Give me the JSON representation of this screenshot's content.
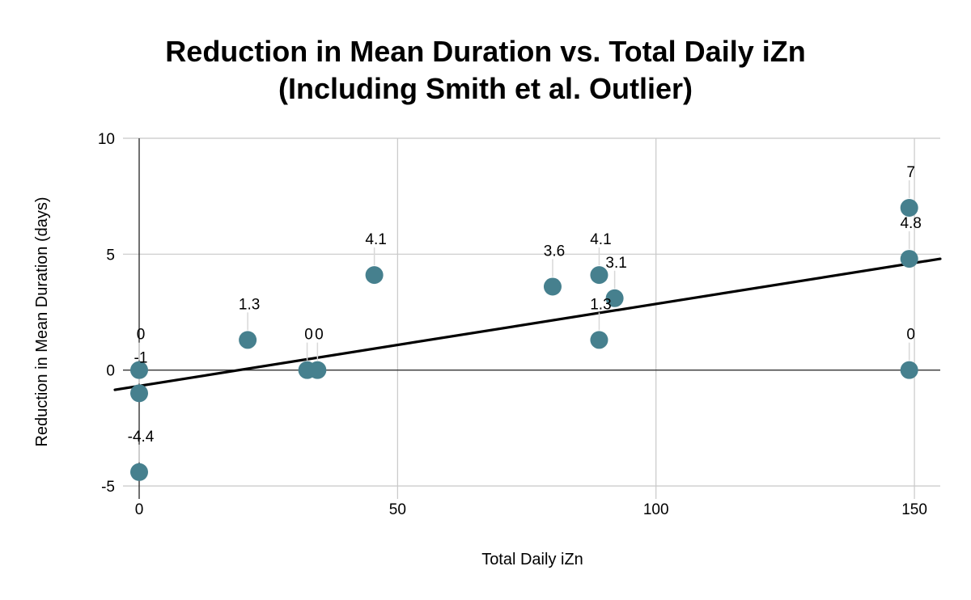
{
  "chart_data": {
    "type": "scatter",
    "title_lines": [
      "Reduction in Mean Duration vs. Total Daily iZn",
      "(Including Smith et al. Outlier)"
    ],
    "xlabel": "Total Daily iZn",
    "ylabel": "Reduction in Mean Duration (days)",
    "xlim": [
      0,
      155
    ],
    "ylim": [
      -5,
      10
    ],
    "x_ticks": [
      0,
      50,
      100,
      150
    ],
    "y_ticks": [
      -5,
      0,
      5,
      10
    ],
    "grid": true,
    "legend": "none",
    "point_color": "#46808e",
    "trendline": {
      "type": "linear",
      "color": "#000000",
      "y_at_x_min": -0.65,
      "y_at_x_max": 4.8
    },
    "points": [
      {
        "x": 0,
        "y": 0,
        "label": "0"
      },
      {
        "x": 0,
        "y": -1,
        "label": "-1"
      },
      {
        "x": 0,
        "y": -4.4,
        "label": "-4.4"
      },
      {
        "x": 21,
        "y": 1.3,
        "label": "1.3"
      },
      {
        "x": 32.5,
        "y": 0,
        "label": "0"
      },
      {
        "x": 34.5,
        "y": 0,
        "label": "0"
      },
      {
        "x": 45.5,
        "y": 4.1,
        "label": "4.1"
      },
      {
        "x": 80,
        "y": 3.6,
        "label": "3.6"
      },
      {
        "x": 89,
        "y": 4.1,
        "label": "4.1"
      },
      {
        "x": 92,
        "y": 3.1,
        "label": "3.1"
      },
      {
        "x": 89,
        "y": 1.3,
        "label": "1.3"
      },
      {
        "x": 149,
        "y": 7,
        "label": "7"
      },
      {
        "x": 149,
        "y": 4.8,
        "label": "4.8"
      },
      {
        "x": 149,
        "y": 0,
        "label": "0"
      }
    ]
  }
}
